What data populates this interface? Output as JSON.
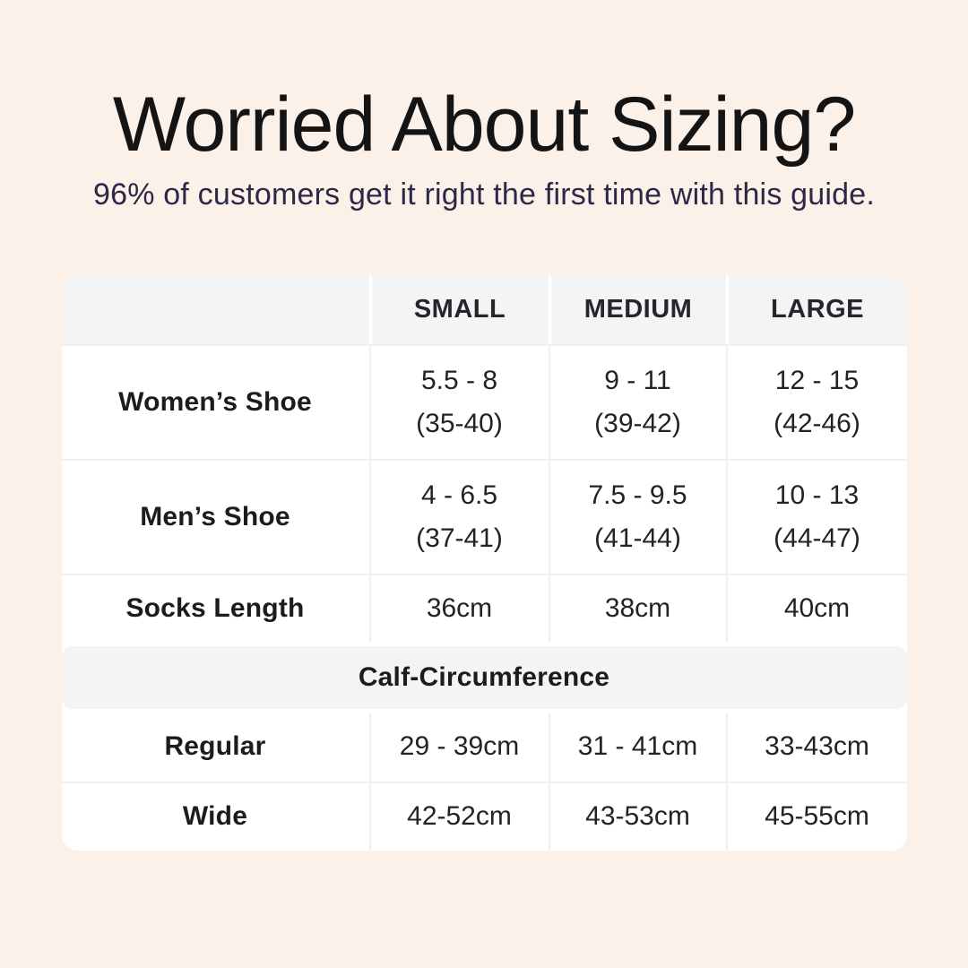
{
  "page": {
    "background_color": "#fcf1e9",
    "title": "Worried About Sizing?",
    "subtitle": "96% of customers get it right the first time with this guide.",
    "title_color": "#141414",
    "subtitle_color": "#2b2947",
    "accent_gray": "#f5f4f4"
  },
  "table": {
    "header": {
      "col0": "",
      "col1": "SMALL",
      "col2": "MEDIUM",
      "col3": "LARGE"
    },
    "rows": [
      {
        "label": "Women’s Shoe",
        "cells": [
          {
            "line1": "5.5 - 8",
            "line2": "(35-40)"
          },
          {
            "line1": "9 - 11",
            "line2": "(39-42)"
          },
          {
            "line1": "12 - 15",
            "line2": "(42-46)"
          }
        ]
      },
      {
        "label": "Men’s Shoe",
        "cells": [
          {
            "line1": "4 - 6.5",
            "line2": "(37-41)"
          },
          {
            "line1": "7.5 - 9.5",
            "line2": "(41-44)"
          },
          {
            "line1": "10 - 13",
            "line2": "(44-47)"
          }
        ]
      },
      {
        "label": "Socks Length",
        "cells": [
          {
            "line1": "36cm"
          },
          {
            "line1": "38cm"
          },
          {
            "line1": "40cm"
          }
        ]
      }
    ],
    "band_label": "Calf-Circumference",
    "calf_rows": [
      {
        "label": "Regular",
        "cells": [
          "29 - 39cm",
          "31 - 41cm",
          "33-43cm"
        ]
      },
      {
        "label": "Wide",
        "cells": [
          "42-52cm",
          "43-53cm",
          "45-55cm"
        ]
      }
    ]
  },
  "chart_data": {
    "type": "table",
    "title": "Worried About Sizing?",
    "subtitle": "96% of customers get it right the first time with this guide.",
    "columns": [
      "",
      "SMALL",
      "MEDIUM",
      "LARGE"
    ],
    "rows": [
      [
        "Women’s Shoe",
        "5.5 - 8 (35-40)",
        "9 - 11 (39-42)",
        "12 - 15 (42-46)"
      ],
      [
        "Men’s Shoe",
        "4 - 6.5 (37-41)",
        "7.5 - 9.5 (41-44)",
        "10 - 13 (44-47)"
      ],
      [
        "Socks Length",
        "36cm",
        "38cm",
        "40cm"
      ],
      [
        "Calf-Circumference",
        "",
        "",
        ""
      ],
      [
        "Regular",
        "29 - 39cm",
        "31 - 41cm",
        "33-43cm"
      ],
      [
        "Wide",
        "42-52cm",
        "43-53cm",
        "45-55cm"
      ]
    ],
    "layout_hints": {
      "header_background": "#f5f4f4",
      "section_band_rows": [
        "Calf-Circumference"
      ],
      "grid": "light-gray cell borders, white table card on cream background"
    }
  }
}
